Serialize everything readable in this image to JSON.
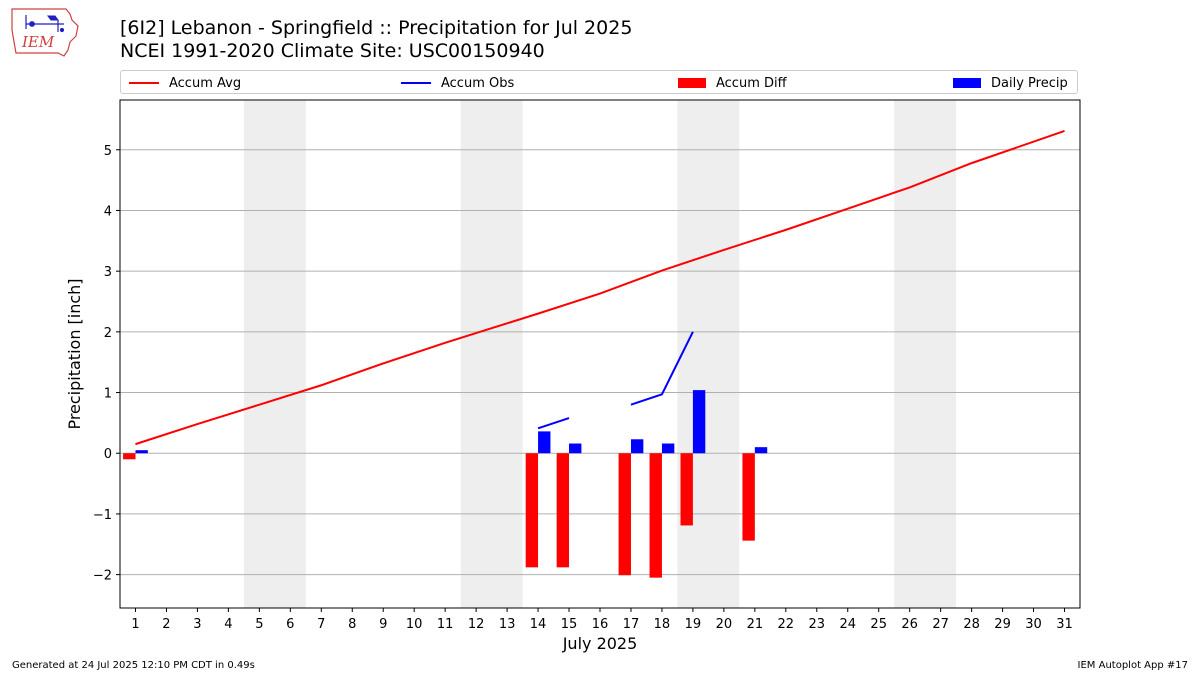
{
  "header": {
    "title_line1": "[6I2] Lebanon - Springfield :: Precipitation for Jul 2025",
    "title_line2": "NCEI 1991-2020 Climate Site: USC00150940"
  },
  "logo": {
    "text": "IEM",
    "icon": "iem-logo-icon"
  },
  "legend": {
    "items": [
      {
        "label": "Accum Avg",
        "color": "#ff0000",
        "kind": "line"
      },
      {
        "label": "Accum Obs",
        "color": "#0000ff",
        "kind": "line"
      },
      {
        "label": "Accum Diff",
        "color": "#ff0000",
        "kind": "box"
      },
      {
        "label": "Daily Precip",
        "color": "#0000ff",
        "kind": "box"
      }
    ]
  },
  "footer": {
    "left": "Generated at 24 Jul 2025 12:10 PM CDT in 0.49s",
    "right": "IEM Autoplot App #17"
  },
  "chart_data": {
    "type": "bar",
    "xlabel": "July 2025",
    "ylabel": "Precipitation [inch]",
    "xlim": [
      0.5,
      31.5
    ],
    "ylim": [
      -2.55,
      5.82
    ],
    "yticks": [
      -2,
      -1,
      0,
      1,
      2,
      3,
      4,
      5
    ],
    "ytick_labels": [
      "−2",
      "−1",
      "0",
      "1",
      "2",
      "3",
      "4",
      "5"
    ],
    "days": [
      1,
      2,
      3,
      4,
      5,
      6,
      7,
      8,
      9,
      10,
      11,
      12,
      13,
      14,
      15,
      16,
      17,
      18,
      19,
      20,
      21,
      22,
      23,
      24,
      25,
      26,
      27,
      28,
      29,
      30,
      31
    ],
    "grid": "horizontal",
    "weekend_shading": [
      [
        4.5,
        6.5
      ],
      [
        11.5,
        13.5
      ],
      [
        18.5,
        20.5
      ],
      [
        25.5,
        27.5
      ]
    ],
    "shade_color": "#eeeeee",
    "series": [
      {
        "name": "Accum Avg",
        "type": "line",
        "color": "#ff0000",
        "x": [
          1,
          3,
          5,
          7,
          9,
          11,
          13,
          14,
          16,
          18,
          20,
          22,
          24,
          26,
          28,
          31
        ],
        "values": [
          0.15,
          0.48,
          0.8,
          1.12,
          1.48,
          1.82,
          2.14,
          2.3,
          2.63,
          3.01,
          3.35,
          3.68,
          4.03,
          4.38,
          4.78,
          5.31
        ]
      },
      {
        "name": "Accum Obs",
        "type": "line",
        "color": "#0000ff",
        "segments": [
          {
            "x": [
              14,
              15
            ],
            "values": [
              0.41,
              0.58
            ]
          },
          {
            "x": [
              17,
              18,
              19
            ],
            "values": [
              0.8,
              0.97,
              2.0
            ]
          }
        ]
      },
      {
        "name": "Accum Diff",
        "type": "bar",
        "color": "#ff0000",
        "offset": -0.2,
        "x": [
          1,
          14,
          15,
          17,
          18,
          19,
          21
        ],
        "values": [
          -0.1,
          -1.88,
          -1.88,
          -2.01,
          -2.05,
          -1.19,
          -1.44
        ]
      },
      {
        "name": "Daily Precip",
        "type": "bar",
        "color": "#0000ff",
        "offset": 0.2,
        "x": [
          1,
          14,
          15,
          17,
          18,
          19,
          21
        ],
        "values": [
          0.05,
          0.36,
          0.16,
          0.23,
          0.16,
          1.04,
          0.1
        ]
      }
    ]
  }
}
